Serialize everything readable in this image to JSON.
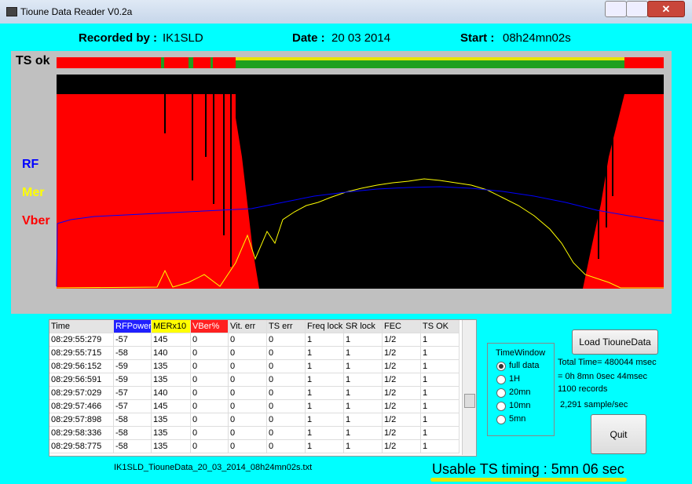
{
  "window": {
    "title": "Tioune Data Reader V0.2a"
  },
  "header": {
    "recorded_label": "Recorded by :",
    "recorded_value": "IK1SLD",
    "date_label": "Date :",
    "date_value": "20 03 2014",
    "start_label": "Start :",
    "start_value": "08h24mn02s"
  },
  "graph": {
    "ts_label": "TS ok",
    "legend": [
      "RF",
      "Mer",
      "Vber"
    ]
  },
  "table": {
    "columns": [
      "Time",
      "RFPower",
      "MERx10",
      "VBer%",
      "Vit. err",
      "TS err",
      "Freq lock",
      "SR lock",
      "FEC",
      "TS OK"
    ],
    "rows": [
      [
        "08:29:55:279",
        "-57",
        "145",
        "0",
        "0",
        "0",
        "1",
        "1",
        "1/2",
        "1"
      ],
      [
        "08:29:55:715",
        "-58",
        "140",
        "0",
        "0",
        "0",
        "1",
        "1",
        "1/2",
        "1"
      ],
      [
        "08:29:56:152",
        "-59",
        "135",
        "0",
        "0",
        "0",
        "1",
        "1",
        "1/2",
        "1"
      ],
      [
        "08:29:56:591",
        "-59",
        "135",
        "0",
        "0",
        "0",
        "1",
        "1",
        "1/2",
        "1"
      ],
      [
        "08:29:57:029",
        "-57",
        "140",
        "0",
        "0",
        "0",
        "1",
        "1",
        "1/2",
        "1"
      ],
      [
        "08:29:57:466",
        "-57",
        "145",
        "0",
        "0",
        "0",
        "1",
        "1",
        "1/2",
        "1"
      ],
      [
        "08:29:57:898",
        "-58",
        "135",
        "0",
        "0",
        "0",
        "1",
        "1",
        "1/2",
        "1"
      ],
      [
        "08:29:58:336",
        "-58",
        "135",
        "0",
        "0",
        "0",
        "1",
        "1",
        "1/2",
        "1"
      ],
      [
        "08:29:58:775",
        "-58",
        "135",
        "0",
        "0",
        "0",
        "1",
        "1",
        "1/2",
        "1"
      ]
    ]
  },
  "time_window": {
    "title": "TimeWindow",
    "options": [
      "full data",
      "1H",
      "20mn",
      "10mn",
      "5mn"
    ]
  },
  "stats": {
    "load_button": "Load TiouneData",
    "total_time": "Total Time= 480044 msec",
    "duration": "= 0h 8mn 0sec 44msec",
    "records": "1100 records",
    "rate": "2,291 sample/sec",
    "quit_button": "Quit"
  },
  "footer": {
    "filename": "IK1SLD_TiouneData_20_03_2014_08h24mn02s.txt",
    "usable": "Usable TS timing : 5mn 06 sec"
  }
}
